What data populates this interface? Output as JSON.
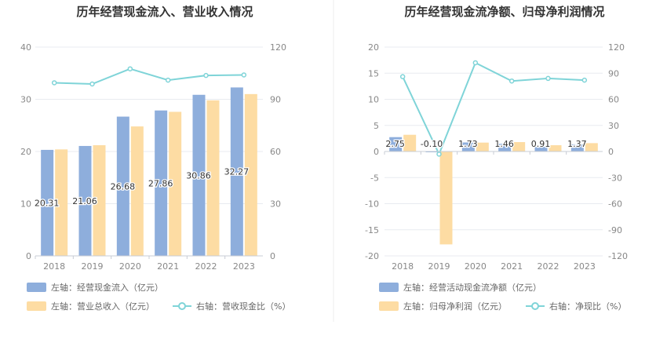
{
  "chart_data": [
    {
      "type": "bar",
      "title": "历年经营现金流入、营业收入情况",
      "categories": [
        "2018",
        "2019",
        "2020",
        "2021",
        "2022",
        "2023"
      ],
      "series": [
        {
          "name": "左轴：经营现金流入（亿元）",
          "axis": "left",
          "kind": "bar",
          "color": "#8eaedc",
          "values": [
            20.31,
            21.06,
            26.68,
            27.86,
            30.86,
            32.27
          ],
          "labels": [
            "20.31",
            "21.06",
            "26.68",
            "27.86",
            "30.86",
            "32.27"
          ]
        },
        {
          "name": "左轴：营业总收入（亿元）",
          "axis": "left",
          "kind": "bar",
          "color": "#fddca3",
          "values": [
            20.4,
            21.2,
            24.8,
            27.6,
            29.8,
            31.0
          ]
        },
        {
          "name": "右轴：营收现金比（%）",
          "axis": "right",
          "kind": "line",
          "color": "#7fd4d8",
          "values": [
            99.5,
            98.8,
            107.5,
            101.0,
            103.7,
            104.0
          ]
        }
      ],
      "left_axis": {
        "min": 0,
        "max": 40,
        "ticks": [
          "0",
          "10",
          "20",
          "30",
          "40"
        ]
      },
      "right_axis": {
        "min": 0,
        "max": 120,
        "ticks": [
          "0",
          "30",
          "60",
          "90",
          "120"
        ]
      },
      "legend": "bottom-left",
      "grid": true
    },
    {
      "type": "bar",
      "title": "历年经营现金流净额、归母净利润情况",
      "categories": [
        "2018",
        "2019",
        "2020",
        "2021",
        "2022",
        "2023"
      ],
      "series": [
        {
          "name": "左轴：经营活动现金流净额（亿元）",
          "axis": "left",
          "kind": "bar",
          "color": "#8eaedc",
          "values": [
            2.75,
            -0.1,
            1.73,
            1.46,
            0.91,
            1.37
          ],
          "labels": [
            "2.75",
            "-0.10",
            "1.73",
            "1.46",
            "0.91",
            "1.37"
          ]
        },
        {
          "name": "左轴：归母净利润（亿元）",
          "axis": "left",
          "kind": "bar",
          "color": "#fddca3",
          "values": [
            3.2,
            -17.8,
            1.7,
            1.8,
            1.2,
            1.6
          ]
        },
        {
          "name": "右轴：净现比（%）",
          "axis": "right",
          "kind": "line",
          "color": "#7fd4d8",
          "values": [
            86,
            -3,
            102,
            81,
            84,
            82
          ]
        }
      ],
      "left_axis": {
        "min": -20,
        "max": 20,
        "ticks": [
          "-20",
          "-15",
          "-10",
          "-5",
          "0",
          "5",
          "10",
          "15",
          "20"
        ]
      },
      "right_axis": {
        "min": -120,
        "max": 120,
        "ticks": [
          "-120",
          "-90",
          "-60",
          "-30",
          "0",
          "30",
          "60",
          "90",
          "120"
        ]
      },
      "legend": "bottom-left",
      "grid": true
    }
  ]
}
